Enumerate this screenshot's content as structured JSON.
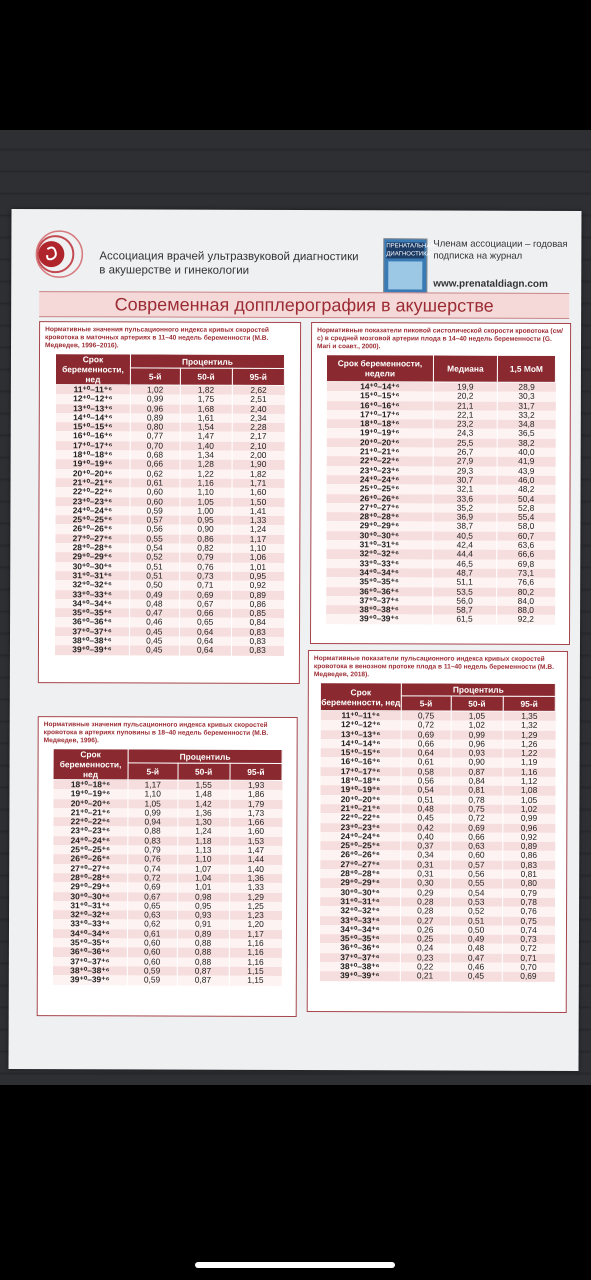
{
  "header": {
    "org_line1": "Ассоциация врачей ультразвуковой диагностики",
    "org_line2": "в акушерстве и гинекологии",
    "journal_title": "ПРЕНАТАЛЬНАЯ ДИАГНОСТИКА",
    "member_line1": "Членам ассоциации – годовая",
    "member_line2": "подписка на журнал",
    "website": "www.prenataldiagn.com"
  },
  "banner": "Современная допплерография в акушерстве",
  "uterine": {
    "caption": "Нормативные значения пульсационного индекса кривых скоростей кровотока в маточных артериях в 11–40 недель беременности (М.В. Медведев, 1996–2016).",
    "h_term": "Срок беременности, нед",
    "h_pct": "Процентиль",
    "cols": [
      "5-й",
      "50-й",
      "95-й"
    ],
    "rows": [
      [
        "11⁺⁰–11⁺⁶",
        "1,02",
        "1,82",
        "2,62"
      ],
      [
        "12⁺⁰–12⁺⁶",
        "0,99",
        "1,75",
        "2,51"
      ],
      [
        "13⁺⁰–13⁺⁶",
        "0,96",
        "1,68",
        "2,40"
      ],
      [
        "14⁺⁰–14⁺⁶",
        "0,89",
        "1,61",
        "2,34"
      ],
      [
        "15⁺⁰–15⁺⁶",
        "0,80",
        "1,54",
        "2,28"
      ],
      [
        "16⁺⁰–16⁺⁶",
        "0,77",
        "1,47",
        "2,17"
      ],
      [
        "17⁺⁰–17⁺⁶",
        "0,70",
        "1,40",
        "2,10"
      ],
      [
        "18⁺⁰–18⁺⁶",
        "0,68",
        "1,34",
        "2,00"
      ],
      [
        "19⁺⁰–19⁺⁶",
        "0,66",
        "1,28",
        "1,90"
      ],
      [
        "20⁺⁰–20⁺⁶",
        "0,62",
        "1,22",
        "1,82"
      ],
      [
        "21⁺⁰–21⁺⁶",
        "0,61",
        "1,16",
        "1,71"
      ],
      [
        "22⁺⁰–22⁺⁶",
        "0,60",
        "1,10",
        "1,60"
      ],
      [
        "23⁺⁰–23⁺⁶",
        "0,60",
        "1,05",
        "1,50"
      ],
      [
        "24⁺⁰–24⁺⁶",
        "0,59",
        "1,00",
        "1,41"
      ],
      [
        "25⁺⁰–25⁺⁶",
        "0,57",
        "0,95",
        "1,33"
      ],
      [
        "26⁺⁰–26⁺⁶",
        "0,56",
        "0,90",
        "1,24"
      ],
      [
        "27⁺⁰–27⁺⁶",
        "0,55",
        "0,86",
        "1,17"
      ],
      [
        "28⁺⁰–28⁺⁶",
        "0,54",
        "0,82",
        "1,10"
      ],
      [
        "29⁺⁰–29⁺⁶",
        "0,52",
        "0,79",
        "1,06"
      ],
      [
        "30⁺⁰–30⁺⁶",
        "0,51",
        "0,76",
        "1,01"
      ],
      [
        "31⁺⁰–31⁺⁶",
        "0,51",
        "0,73",
        "0,95"
      ],
      [
        "32⁺⁰–32⁺⁶",
        "0,50",
        "0,71",
        "0,92"
      ],
      [
        "33⁺⁰–33⁺⁶",
        "0,49",
        "0,69",
        "0,89"
      ],
      [
        "34⁺⁰–34⁺⁶",
        "0,48",
        "0,67",
        "0,86"
      ],
      [
        "35⁺⁰–35⁺⁶",
        "0,47",
        "0,66",
        "0,85"
      ],
      [
        "36⁺⁰–36⁺⁶",
        "0,46",
        "0,65",
        "0,84"
      ],
      [
        "37⁺⁰–37⁺⁶",
        "0,45",
        "0,64",
        "0,83"
      ],
      [
        "38⁺⁰–38⁺⁶",
        "0,45",
        "0,64",
        "0,83"
      ],
      [
        "39⁺⁰–39⁺⁶",
        "0,45",
        "0,64",
        "0,83"
      ]
    ]
  },
  "mca": {
    "caption": "Нормативные показатели пиковой систолической скорости кровотока (см/с) в средней мозговой артерии плода в 14–40 недель беременности (G. Mari и соавт., 2000).",
    "h_term": "Срок беременности, недели",
    "cols": [
      "Медиана",
      "1,5 МоМ"
    ],
    "rows": [
      [
        "14⁺⁰–14⁺⁶",
        "19,9",
        "28,9"
      ],
      [
        "15⁺⁰–15⁺⁶",
        "20,2",
        "30,3"
      ],
      [
        "16⁺⁰–16⁺⁶",
        "21,1",
        "31,7"
      ],
      [
        "17⁺⁰–17⁺⁶",
        "22,1",
        "33,2"
      ],
      [
        "18⁺⁰–18⁺⁶",
        "23,2",
        "34,8"
      ],
      [
        "19⁺⁰–19⁺⁶",
        "24,3",
        "36,5"
      ],
      [
        "20⁺⁰–20⁺⁶",
        "25,5",
        "38,2"
      ],
      [
        "21⁺⁰–21⁺⁶",
        "26,7",
        "40,0"
      ],
      [
        "22⁺⁰–22⁺⁶",
        "27,9",
        "41,9"
      ],
      [
        "23⁺⁰–23⁺⁶",
        "29,3",
        "43,9"
      ],
      [
        "24⁺⁰–24⁺⁶",
        "30,7",
        "46,0"
      ],
      [
        "25⁺⁰–25⁺⁶",
        "32,1",
        "48,2"
      ],
      [
        "26⁺⁰–26⁺⁶",
        "33,6",
        "50,4"
      ],
      [
        "27⁺⁰–27⁺⁶",
        "35,2",
        "52,8"
      ],
      [
        "28⁺⁰–28⁺⁶",
        "36,9",
        "55,4"
      ],
      [
        "29⁺⁰–29⁺⁶",
        "38,7",
        "58,0"
      ],
      [
        "30⁺⁰–30⁺⁶",
        "40,5",
        "60,7"
      ],
      [
        "31⁺⁰–31⁺⁶",
        "42,4",
        "63,6"
      ],
      [
        "32⁺⁰–32⁺⁶",
        "44,4",
        "66,6"
      ],
      [
        "33⁺⁰–33⁺⁶",
        "46,5",
        "69,8"
      ],
      [
        "34⁺⁰–34⁺⁶",
        "48,7",
        "73,1"
      ],
      [
        "35⁺⁰–35⁺⁶",
        "51,1",
        "76,6"
      ],
      [
        "36⁺⁰–36⁺⁶",
        "53,5",
        "80,2"
      ],
      [
        "37⁺⁰–37⁺⁶",
        "56,0",
        "84,0"
      ],
      [
        "38⁺⁰–38⁺⁶",
        "58,7",
        "88,0"
      ],
      [
        "39⁺⁰–39⁺⁶",
        "61,5",
        "92,2"
      ]
    ]
  },
  "umbilical": {
    "caption": "Нормативные значения пульсационного индекса кривых скоростей кровотока в артериях пуповины в 18–40 недель беременности (М.В. Медведев, 1996).",
    "h_term": "Срок беременности, нед",
    "h_pct": "Процентиль",
    "cols": [
      "5-й",
      "50-й",
      "95-й"
    ],
    "rows": [
      [
        "18⁺⁰–18⁺⁶",
        "1,17",
        "1,55",
        "1,93"
      ],
      [
        "19⁺⁰–19⁺⁶",
        "1,10",
        "1,48",
        "1,86"
      ],
      [
        "20⁺⁰–20⁺⁶",
        "1,05",
        "1,42",
        "1,79"
      ],
      [
        "21⁺⁰–21⁺⁶",
        "0,99",
        "1,36",
        "1,73"
      ],
      [
        "22⁺⁰–22⁺⁶",
        "0,94",
        "1,30",
        "1,66"
      ],
      [
        "23⁺⁰–23⁺⁶",
        "0,88",
        "1,24",
        "1,60"
      ],
      [
        "24⁺⁰–24⁺⁶",
        "0,83",
        "1,18",
        "1,53"
      ],
      [
        "25⁺⁰–25⁺⁶",
        "0,79",
        "1,13",
        "1,47"
      ],
      [
        "26⁺⁰–26⁺⁶",
        "0,76",
        "1,10",
        "1,44"
      ],
      [
        "27⁺⁰–27⁺⁶",
        "0,74",
        "1,07",
        "1,40"
      ],
      [
        "28⁺⁰–28⁺⁶",
        "0,72",
        "1,04",
        "1,36"
      ],
      [
        "29⁺⁰–29⁺⁶",
        "0,69",
        "1,01",
        "1,33"
      ],
      [
        "30⁺⁰–30⁺⁶",
        "0,67",
        "0,98",
        "1,29"
      ],
      [
        "31⁺⁰–31⁺⁶",
        "0,65",
        "0,95",
        "1,25"
      ],
      [
        "32⁺⁰–32⁺⁶",
        "0,63",
        "0,93",
        "1,23"
      ],
      [
        "33⁺⁰–33⁺⁶",
        "0,62",
        "0,91",
        "1,20"
      ],
      [
        "34⁺⁰–34⁺⁶",
        "0,61",
        "0,89",
        "1,17"
      ],
      [
        "35⁺⁰–35⁺⁶",
        "0,60",
        "0,88",
        "1,16"
      ],
      [
        "36⁺⁰–36⁺⁶",
        "0,60",
        "0,88",
        "1,16"
      ],
      [
        "37⁺⁰–37⁺⁶",
        "0,60",
        "0,88",
        "1,16"
      ],
      [
        "38⁺⁰–38⁺⁶",
        "0,59",
        "0,87",
        "1,15"
      ],
      [
        "39⁺⁰–39⁺⁶",
        "0,59",
        "0,87",
        "1,15"
      ]
    ]
  },
  "ductus": {
    "caption": "Нормативные показатели пульсационного индекса кривых скоростей кровотока в венозном протоке плода в 11–40 недель беременности (М.В. Медведев, 2018).",
    "h_term": "Срок беременности, нед",
    "h_pct": "Процентиль",
    "cols": [
      "5-й",
      "50-й",
      "95-й"
    ],
    "rows": [
      [
        "11⁺⁰–11⁺⁶",
        "0,75",
        "1,05",
        "1,35"
      ],
      [
        "12⁺⁰–12⁺⁶",
        "0,72",
        "1,02",
        "1,32"
      ],
      [
        "13⁺⁰–13⁺⁶",
        "0,69",
        "0,99",
        "1,29"
      ],
      [
        "14⁺⁰–14⁺⁶",
        "0,66",
        "0,96",
        "1,26"
      ],
      [
        "15⁺⁰–15⁺⁶",
        "0,64",
        "0,93",
        "1,22"
      ],
      [
        "16⁺⁰–16⁺⁶",
        "0,61",
        "0,90",
        "1,19"
      ],
      [
        "17⁺⁰–17⁺⁶",
        "0,58",
        "0,87",
        "1,16"
      ],
      [
        "18⁺⁰–18⁺⁶",
        "0,56",
        "0,84",
        "1,12"
      ],
      [
        "19⁺⁰–19⁺⁶",
        "0,54",
        "0,81",
        "1,08"
      ],
      [
        "20⁺⁰–20⁺⁶",
        "0,51",
        "0,78",
        "1,05"
      ],
      [
        "21⁺⁰–21⁺⁶",
        "0,48",
        "0,75",
        "1,02"
      ],
      [
        "22⁺⁰–22⁺⁶",
        "0,45",
        "0,72",
        "0,99"
      ],
      [
        "23⁺⁰–23⁺⁶",
        "0,42",
        "0,69",
        "0,96"
      ],
      [
        "24⁺⁰–24⁺⁶",
        "0,40",
        "0,66",
        "0,92"
      ],
      [
        "25⁺⁰–25⁺⁶",
        "0,37",
        "0,63",
        "0,89"
      ],
      [
        "26⁺⁰–26⁺⁶",
        "0,34",
        "0,60",
        "0,86"
      ],
      [
        "27⁺⁰–27⁺⁶",
        "0,31",
        "0,57",
        "0,83"
      ],
      [
        "28⁺⁰–28⁺⁶",
        "0,31",
        "0,56",
        "0,81"
      ],
      [
        "29⁺⁰–29⁺⁶",
        "0,30",
        "0,55",
        "0,80"
      ],
      [
        "30⁺⁰–30⁺⁶",
        "0,29",
        "0,54",
        "0,79"
      ],
      [
        "31⁺⁰–31⁺⁶",
        "0,28",
        "0,53",
        "0,78"
      ],
      [
        "32⁺⁰–32⁺⁶",
        "0,28",
        "0,52",
        "0,76"
      ],
      [
        "33⁺⁰–33⁺⁶",
        "0,27",
        "0,51",
        "0,75"
      ],
      [
        "34⁺⁰–34⁺⁶",
        "0,26",
        "0,50",
        "0,74"
      ],
      [
        "35⁺⁰–35⁺⁶",
        "0,25",
        "0,49",
        "0,73"
      ],
      [
        "36⁺⁰–36⁺⁶",
        "0,24",
        "0,48",
        "0,72"
      ],
      [
        "37⁺⁰–37⁺⁶",
        "0,23",
        "0,47",
        "0,71"
      ],
      [
        "38⁺⁰–38⁺⁶",
        "0,22",
        "0,46",
        "0,70"
      ],
      [
        "39⁺⁰–39⁺⁶",
        "0,21",
        "0,45",
        "0,69"
      ]
    ]
  }
}
